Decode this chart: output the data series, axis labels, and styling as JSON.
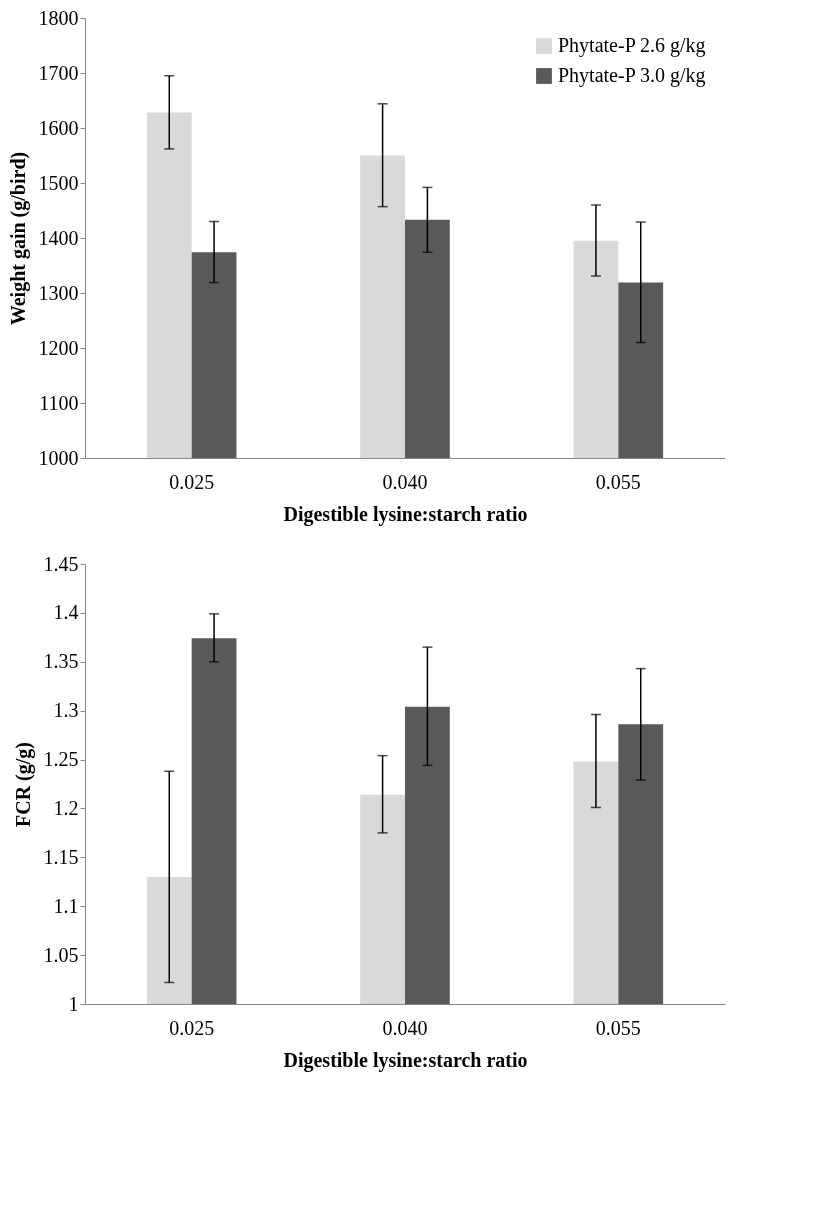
{
  "chart_data": [
    {
      "type": "bar",
      "xlabel": "Digestible lysine:starch ratio",
      "ylabel": "Weight gain (g/bird)",
      "categories": [
        "0.025",
        "0.040",
        "0.055"
      ],
      "ylim": [
        1000,
        1800
      ],
      "yticks": [
        1000,
        1100,
        1200,
        1300,
        1400,
        1500,
        1600,
        1700,
        1800
      ],
      "grid": false,
      "legend": "top right",
      "series": [
        {
          "name": "Phytate-P 2.6 g/kg",
          "color": "#d9d9d9",
          "values": [
            1628,
            1550,
            1395
          ],
          "errors": [
            [
              1562,
              1695
            ],
            [
              1457,
              1644
            ],
            [
              1331,
              1460
            ]
          ]
        },
        {
          "name": "Phytate-P 3.0 g/kg",
          "color": "#595959",
          "values": [
            1374,
            1433,
            1319
          ],
          "errors": [
            [
              1319,
              1430
            ],
            [
              1374,
              1492
            ],
            [
              1210,
              1429
            ]
          ]
        }
      ]
    },
    {
      "type": "bar",
      "xlabel": "Digestible lysine:starch ratio",
      "ylabel": "FCR (g/g)",
      "categories": [
        "0.025",
        "0.040",
        "0.055"
      ],
      "ylim": [
        1,
        1.45
      ],
      "yticks": [
        1,
        1.05,
        1.1,
        1.15,
        1.2,
        1.25,
        1.3,
        1.35,
        1.4,
        1.45
      ],
      "grid": false,
      "legend": false,
      "series": [
        {
          "color": "#d9d9d9",
          "values": [
            1.13,
            1.214,
            1.248
          ],
          "errors": [
            [
              1.022,
              1.238
            ],
            [
              1.175,
              1.254
            ],
            [
              1.201,
              1.296
            ]
          ]
        },
        {
          "color": "#595959",
          "values": [
            1.374,
            1.304,
            1.286
          ],
          "errors": [
            [
              1.35,
              1.399
            ],
            [
              1.244,
              1.365
            ],
            [
              1.229,
              1.343
            ]
          ]
        }
      ]
    }
  ]
}
